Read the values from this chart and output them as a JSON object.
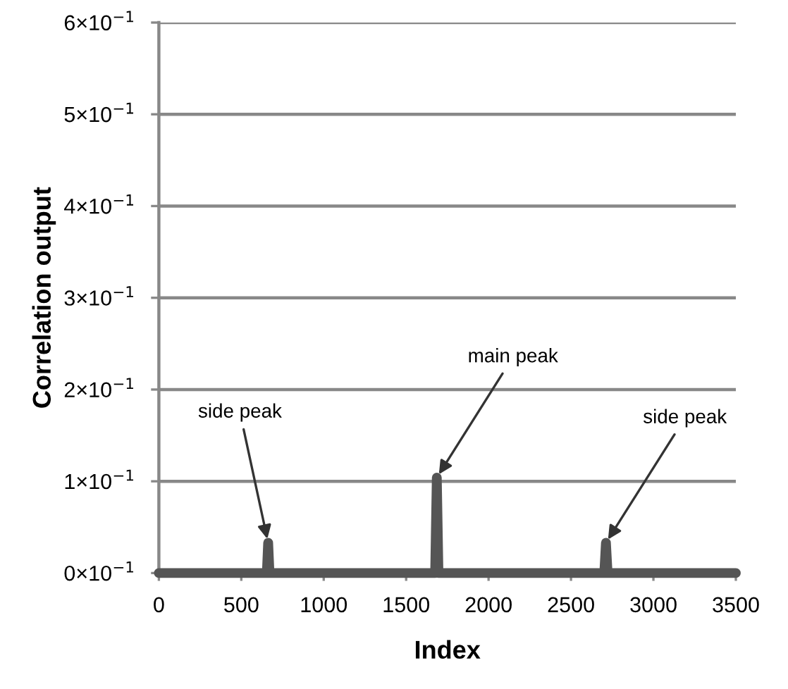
{
  "chart_data": {
    "type": "line",
    "xlabel": "Index",
    "ylabel": "Correlation output",
    "x": [
      0,
      655,
      663,
      671,
      1676,
      1686,
      1696,
      2702,
      2712,
      2722,
      3500
    ],
    "series": [
      {
        "color": "#555555",
        "values": [
          0,
          0,
          0.033,
          0,
          0,
          0.104,
          0,
          0,
          0.033,
          0,
          0
        ]
      }
    ],
    "xlim": [
      0,
      3500
    ],
    "xticks": [
      0,
      500,
      1000,
      1500,
      2000,
      2500,
      3000,
      3500
    ],
    "ylim": [
      0,
      0.6
    ],
    "yticks": [
      {
        "value": 0,
        "label": "0×10$^{−1}$"
      },
      {
        "value": 0.1,
        "label": "1×10$^{−1}$"
      },
      {
        "value": 0.2,
        "label": "2×10$^{−1}$"
      },
      {
        "value": 0.3,
        "label": "3×10$^{−1}$"
      },
      {
        "value": 0.4,
        "label": "4×10$^{−1}$"
      },
      {
        "value": 0.5,
        "label": "5×10$^{−1}$"
      },
      {
        "value": 0.6,
        "label": "6×10$^{−1}$"
      }
    ],
    "grid": "y",
    "marker": "none",
    "line_style": "solid",
    "annotations": [
      {
        "text": "side peak",
        "x": 663,
        "y": 0.033
      },
      {
        "text": "main peak",
        "x": 1686,
        "y": 0.104
      },
      {
        "text": "side peak",
        "x": 2712,
        "y": 0.033
      }
    ]
  }
}
